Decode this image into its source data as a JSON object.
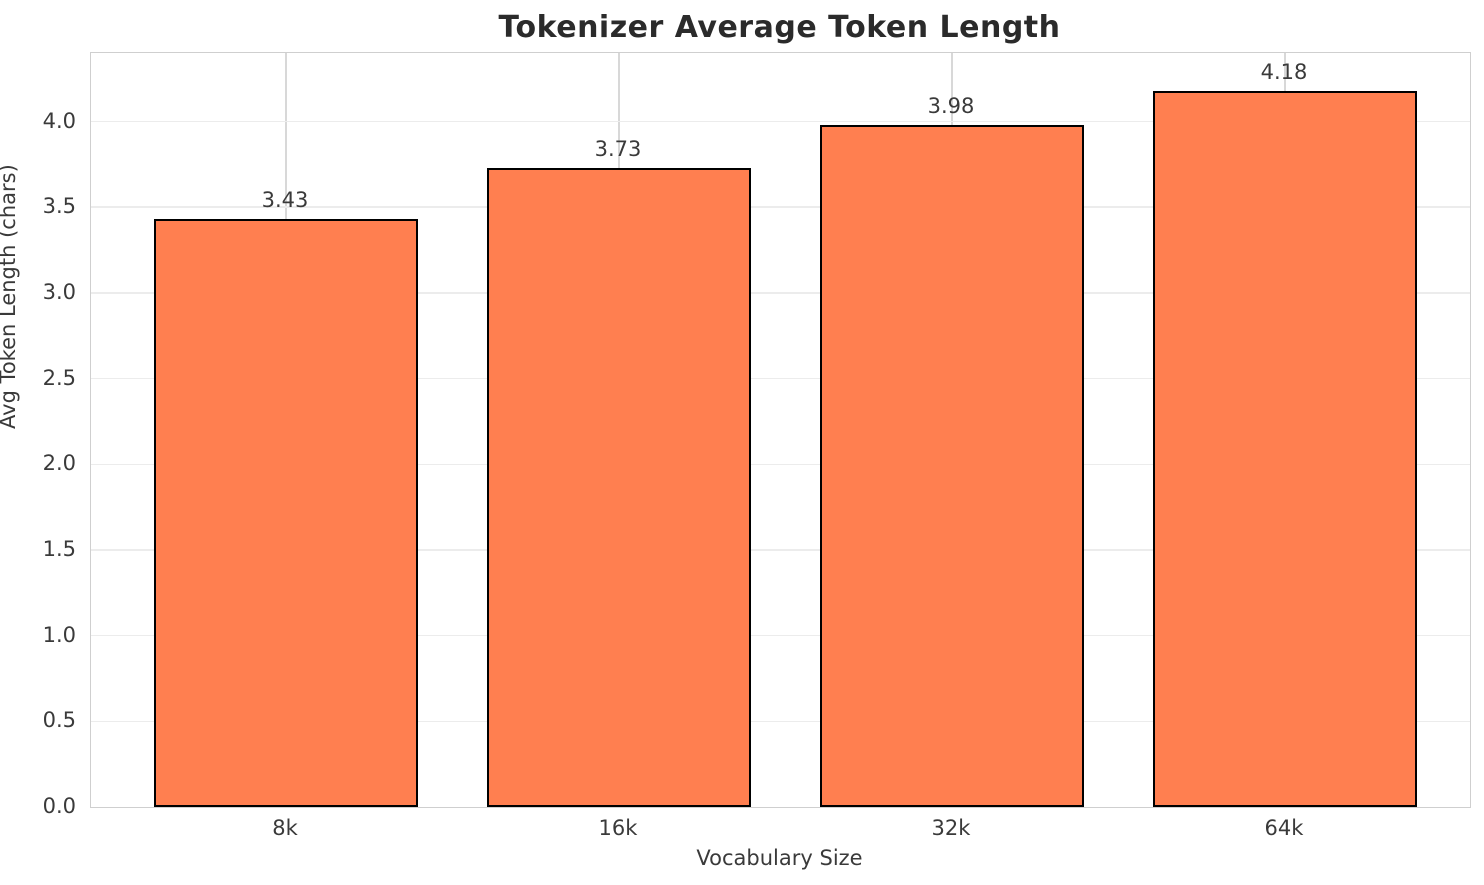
{
  "header": {
    "title": "Tokenizer Average Token Length"
  },
  "chart_data": {
    "type": "bar",
    "title": "Tokenizer Average Token Length",
    "categories": [
      "8k",
      "16k",
      "32k",
      "64k"
    ],
    "values": [
      3.43,
      3.73,
      3.98,
      4.18
    ],
    "value_labels": [
      "3.43",
      "3.73",
      "3.98",
      "4.18"
    ],
    "xlabel": "Vocabulary Size",
    "ylabel": "Avg Token Length (chars)",
    "ylim": [
      0,
      4.4
    ],
    "yticks": [
      0.0,
      0.5,
      1.0,
      1.5,
      2.0,
      2.5,
      3.0,
      3.5,
      4.0
    ],
    "ytick_labels": [
      "0.0",
      "0.5",
      "1.0",
      "1.5",
      "2.0",
      "2.5",
      "3.0",
      "3.5",
      "4.0"
    ],
    "grid": true,
    "legend": "none",
    "colors": {
      "bar_fill": "#ff7f50",
      "bar_edge": "#000000",
      "grid_y": "#ececec",
      "grid_x": "#d8d8d8",
      "spine": "#cfcfcf",
      "title_text": "#2b2b2b",
      "tick_text": "#3a3a3a"
    }
  }
}
